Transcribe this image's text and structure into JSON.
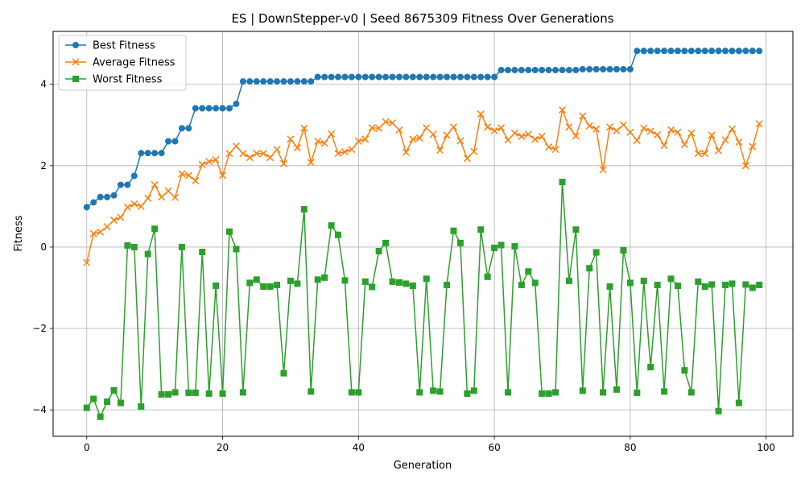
{
  "chart_data": {
    "type": "line",
    "title": "ES | DownStepper-v0 | Seed 8675309 Fitness Over Generations",
    "xlabel": "Generation",
    "ylabel": "Fitness",
    "xlim": [
      -4.95,
      103.95
    ],
    "ylim": [
      -4.65,
      5.3
    ],
    "xticks": [
      0,
      20,
      40,
      60,
      80,
      100
    ],
    "yticks": [
      -4,
      -2,
      0,
      2,
      4
    ],
    "grid": true,
    "legend_position": "upper-left",
    "series": [
      {
        "name": "Best Fitness",
        "color": "#1f77b4",
        "marker": "circle",
        "values": [
          0.98,
          1.1,
          1.23,
          1.23,
          1.27,
          1.53,
          1.53,
          1.75,
          2.31,
          2.31,
          2.31,
          2.31,
          2.6,
          2.6,
          2.92,
          2.92,
          3.41,
          3.41,
          3.41,
          3.41,
          3.41,
          3.41,
          3.52,
          4.07,
          4.07,
          4.07,
          4.07,
          4.07,
          4.07,
          4.07,
          4.07,
          4.07,
          4.07,
          4.07,
          4.18,
          4.18,
          4.18,
          4.18,
          4.18,
          4.18,
          4.18,
          4.18,
          4.18,
          4.18,
          4.18,
          4.18,
          4.18,
          4.18,
          4.18,
          4.18,
          4.18,
          4.18,
          4.18,
          4.18,
          4.18,
          4.18,
          4.18,
          4.18,
          4.18,
          4.18,
          4.18,
          4.35,
          4.35,
          4.35,
          4.35,
          4.35,
          4.35,
          4.35,
          4.35,
          4.35,
          4.35,
          4.35,
          4.35,
          4.37,
          4.37,
          4.37,
          4.37,
          4.37,
          4.37,
          4.37,
          4.37,
          4.82,
          4.82,
          4.82,
          4.82,
          4.82,
          4.82,
          4.82,
          4.82,
          4.82,
          4.82,
          4.82,
          4.82,
          4.82,
          4.82,
          4.82,
          4.82,
          4.82,
          4.82,
          4.82
        ]
      },
      {
        "name": "Average Fitness",
        "color": "#ff7f0e",
        "marker": "x",
        "values": [
          -0.38,
          0.33,
          0.37,
          0.5,
          0.66,
          0.73,
          0.98,
          1.06,
          1.0,
          1.2,
          1.53,
          1.23,
          1.38,
          1.22,
          1.8,
          1.76,
          1.63,
          2.03,
          2.1,
          2.15,
          1.76,
          2.3,
          2.48,
          2.3,
          2.2,
          2.3,
          2.3,
          2.2,
          2.4,
          2.05,
          2.65,
          2.44,
          2.92,
          2.08,
          2.6,
          2.55,
          2.78,
          2.3,
          2.34,
          2.4,
          2.6,
          2.65,
          2.93,
          2.92,
          3.08,
          3.05,
          2.88,
          2.33,
          2.65,
          2.68,
          2.93,
          2.77,
          2.38,
          2.75,
          2.95,
          2.61,
          2.18,
          2.35,
          3.27,
          2.95,
          2.86,
          2.93,
          2.63,
          2.8,
          2.72,
          2.77,
          2.65,
          2.72,
          2.46,
          2.4,
          3.37,
          2.95,
          2.73,
          3.22,
          2.98,
          2.9,
          1.9,
          2.95,
          2.86,
          3.0,
          2.82,
          2.62,
          2.92,
          2.85,
          2.76,
          2.5,
          2.88,
          2.82,
          2.52,
          2.8,
          2.3,
          2.3,
          2.75,
          2.37,
          2.63,
          2.9,
          2.58,
          2.0,
          2.47,
          3.03
        ]
      },
      {
        "name": "Worst Fitness",
        "color": "#2ca02c",
        "marker": "square",
        "values": [
          -3.95,
          -3.73,
          -4.17,
          -3.8,
          -3.52,
          -3.83,
          0.04,
          0.0,
          -3.92,
          -0.17,
          0.45,
          -3.62,
          -3.62,
          -3.57,
          0.0,
          -3.58,
          -3.58,
          -0.12,
          -3.6,
          -0.95,
          -3.6,
          0.38,
          -0.05,
          -3.57,
          -0.88,
          -0.8,
          -0.97,
          -0.97,
          -0.93,
          -3.1,
          -0.83,
          -0.9,
          0.93,
          -3.55,
          -0.8,
          -0.75,
          0.53,
          0.3,
          -0.82,
          -3.57,
          -3.57,
          -0.85,
          -0.98,
          -0.1,
          0.1,
          -0.85,
          -0.87,
          -0.9,
          -0.95,
          -3.57,
          -0.78,
          -3.53,
          -3.55,
          -0.93,
          0.4,
          0.1,
          -3.6,
          -3.53,
          0.43,
          -0.73,
          -0.02,
          0.05,
          -3.57,
          0.02,
          -0.93,
          -0.6,
          -0.88,
          -3.6,
          -3.6,
          -3.57,
          1.6,
          -0.83,
          0.43,
          -3.53,
          -0.52,
          -0.13,
          -3.57,
          -0.97,
          -3.5,
          -0.08,
          -0.88,
          -3.58,
          -0.83,
          -2.95,
          -0.93,
          -3.55,
          -0.78,
          -0.95,
          -3.03,
          -3.57,
          -0.85,
          -0.97,
          -0.92,
          -4.03,
          -0.93,
          -0.9,
          -3.83,
          -0.92,
          -1.0,
          -0.93
        ]
      }
    ]
  }
}
